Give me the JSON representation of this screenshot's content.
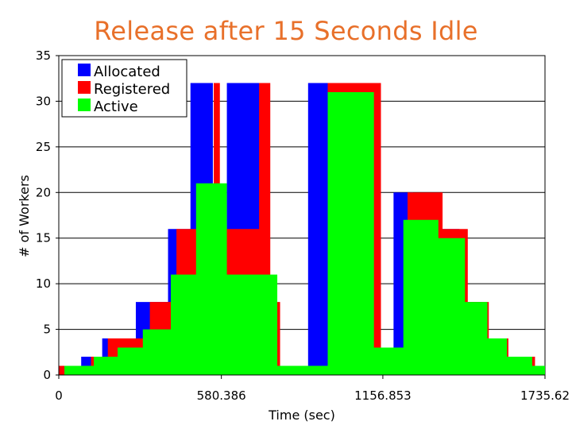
{
  "slide": {
    "title": "Release after 15 Seconds Idle"
  },
  "chart_data": {
    "type": "area",
    "title": "Release after 15 Seconds Idle",
    "xlabel": "Time (sec)",
    "ylabel": "# of Workers",
    "xlim": [
      0,
      1735.62
    ],
    "ylim": [
      0,
      35
    ],
    "x_tick_labels": [
      "0",
      "580.386",
      "1156.853",
      "1735.62"
    ],
    "x_tick_values": [
      0,
      580.386,
      1156.853,
      1735.62
    ],
    "y_tick_values": [
      0,
      5,
      10,
      15,
      20,
      25,
      30,
      35
    ],
    "grid": true,
    "legend_position": "top-left",
    "colors": {
      "Allocated": "#0000ff",
      "Registered": "#ff0000",
      "Active": "#00ff00"
    },
    "series": [
      {
        "name": "Allocated",
        "points": [
          [
            0,
            1
          ],
          [
            80,
            1
          ],
          [
            80,
            2
          ],
          [
            155,
            2
          ],
          [
            155,
            4
          ],
          [
            275,
            4
          ],
          [
            275,
            8
          ],
          [
            390,
            8
          ],
          [
            390,
            16
          ],
          [
            470,
            16
          ],
          [
            470,
            32
          ],
          [
            550,
            32
          ],
          [
            550,
            16
          ],
          [
            600,
            16
          ],
          [
            600,
            32
          ],
          [
            730,
            32
          ],
          [
            730,
            8
          ],
          [
            770,
            8
          ],
          [
            770,
            1
          ],
          [
            890,
            1
          ],
          [
            890,
            32
          ],
          [
            1145,
            32
          ],
          [
            1145,
            3
          ],
          [
            1195,
            3
          ],
          [
            1195,
            20
          ],
          [
            1265,
            20
          ],
          [
            1265,
            18
          ],
          [
            1345,
            18
          ],
          [
            1345,
            16
          ],
          [
            1430,
            16
          ],
          [
            1430,
            8
          ],
          [
            1510,
            8
          ],
          [
            1510,
            4
          ],
          [
            1590,
            4
          ],
          [
            1590,
            2
          ],
          [
            1665,
            2
          ],
          [
            1665,
            1
          ],
          [
            1735.62,
            1
          ]
        ]
      },
      {
        "name": "Registered",
        "points": [
          [
            0,
            1
          ],
          [
            115,
            1
          ],
          [
            115,
            2
          ],
          [
            175,
            2
          ],
          [
            175,
            4
          ],
          [
            325,
            4
          ],
          [
            325,
            8
          ],
          [
            420,
            8
          ],
          [
            420,
            16
          ],
          [
            553,
            16
          ],
          [
            553,
            32
          ],
          [
            575,
            32
          ],
          [
            575,
            16
          ],
          [
            715,
            16
          ],
          [
            715,
            32
          ],
          [
            755,
            32
          ],
          [
            755,
            8
          ],
          [
            790,
            8
          ],
          [
            790,
            1
          ],
          [
            960,
            1
          ],
          [
            960,
            32
          ],
          [
            1150,
            32
          ],
          [
            1150,
            3
          ],
          [
            1245,
            3
          ],
          [
            1245,
            20
          ],
          [
            1370,
            20
          ],
          [
            1370,
            16
          ],
          [
            1460,
            16
          ],
          [
            1460,
            8
          ],
          [
            1535,
            8
          ],
          [
            1535,
            4
          ],
          [
            1605,
            4
          ],
          [
            1605,
            2
          ],
          [
            1700,
            2
          ],
          [
            1700,
            1
          ],
          [
            1735.62,
            1
          ]
        ]
      },
      {
        "name": "Active",
        "points": [
          [
            0,
            0
          ],
          [
            20,
            0
          ],
          [
            20,
            1
          ],
          [
            125,
            1
          ],
          [
            125,
            2
          ],
          [
            210,
            2
          ],
          [
            210,
            3
          ],
          [
            300,
            3
          ],
          [
            300,
            5
          ],
          [
            400,
            5
          ],
          [
            400,
            11
          ],
          [
            490,
            11
          ],
          [
            490,
            21
          ],
          [
            600,
            21
          ],
          [
            600,
            11
          ],
          [
            780,
            11
          ],
          [
            780,
            1
          ],
          [
            960,
            1
          ],
          [
            960,
            31
          ],
          [
            1125,
            31
          ],
          [
            1125,
            3
          ],
          [
            1230,
            3
          ],
          [
            1230,
            17
          ],
          [
            1355,
            17
          ],
          [
            1355,
            15
          ],
          [
            1450,
            15
          ],
          [
            1450,
            8
          ],
          [
            1530,
            8
          ],
          [
            1530,
            4
          ],
          [
            1600,
            4
          ],
          [
            1600,
            2
          ],
          [
            1690,
            2
          ],
          [
            1690,
            1
          ],
          [
            1735.62,
            1
          ]
        ]
      }
    ]
  }
}
